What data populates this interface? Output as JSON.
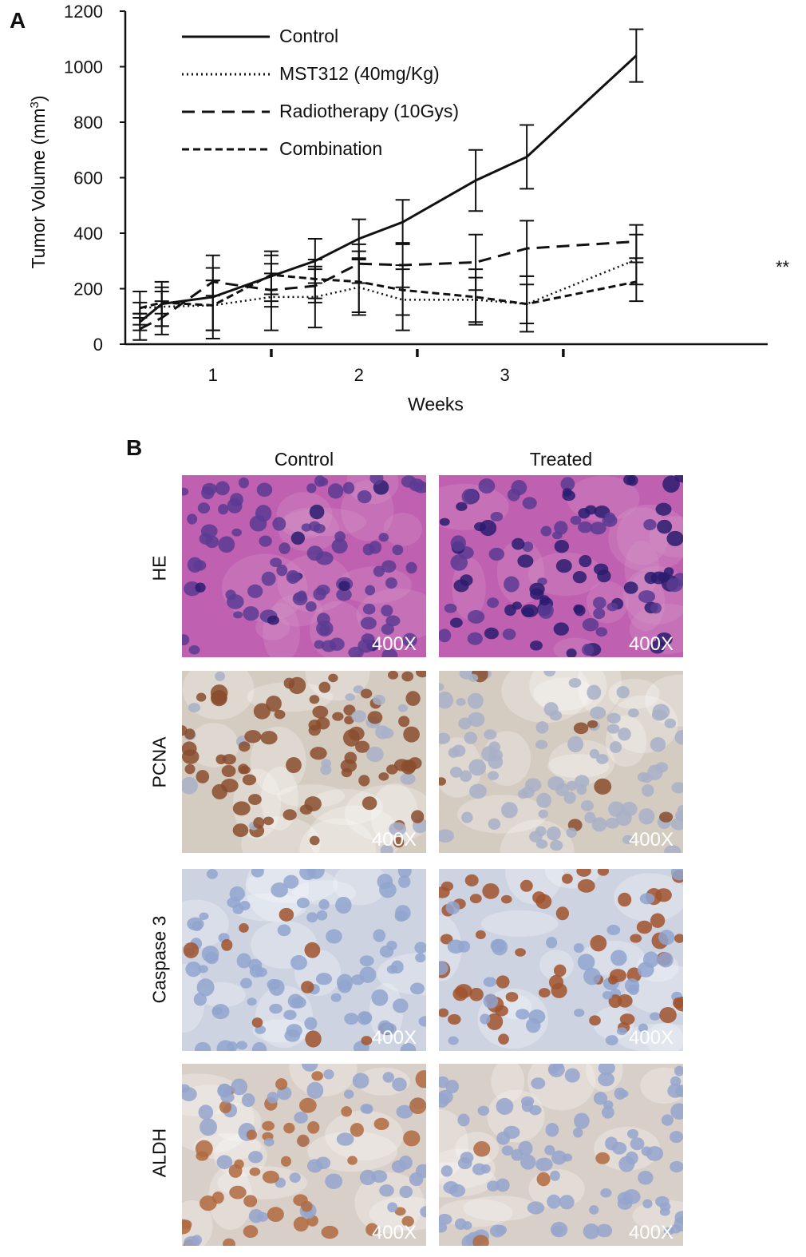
{
  "panel_a": {
    "letter": "A"
  },
  "panel_b": {
    "letter": "B",
    "columns": [
      "Control",
      "Treated"
    ],
    "rows": [
      "HE",
      "PCNA",
      "Caspase 3",
      "ALDH"
    ],
    "magnification": "400X",
    "tile_style": {
      "HE": {
        "background": "#c060b0",
        "cell": "#5a3b93",
        "dark": "#2a1c70",
        "alt": "#d8a0cc"
      },
      "PCNA": {
        "background": "#d4cbc1",
        "cell": "#a8b0c8",
        "stain": "#8a4e2e"
      },
      "Caspase 3": {
        "background": "#cdd3e0",
        "cell": "#90a4cf",
        "stain": "#a0522d"
      },
      "ALDH": {
        "background": "#d8cfc8",
        "cell": "#94a4cc",
        "stain": "#b06a40"
      }
    }
  },
  "chart_data": {
    "type": "line",
    "xlabel": "Weeks",
    "ylabel": "Tumor Volume (mm3)",
    "ylabel_parts": {
      "main": "Tumor Volume (mm",
      "sup": "3",
      "close": ")"
    },
    "ylim": [
      0,
      1200
    ],
    "yticks": [
      "0",
      "200",
      "400",
      "600",
      "800",
      "1000",
      "1200"
    ],
    "xlim": [
      0,
      4.4
    ],
    "xtick_labels": [
      {
        "label": "1",
        "x": 0.6
      },
      {
        "label": "2",
        "x": 1.6
      },
      {
        "label": "3",
        "x": 2.6
      }
    ],
    "week_boundaries": [
      1.0,
      2.0,
      3.0
    ],
    "annotation": "**",
    "legend_position": "top-left",
    "series": [
      {
        "name": "Control",
        "dash": "solid",
        "x": [
          0.1,
          0.25,
          0.6,
          1.0,
          1.3,
          1.6,
          1.9,
          2.4,
          2.75,
          3.5
        ],
        "y": [
          80,
          145,
          170,
          245,
          300,
          380,
          440,
          590,
          675,
          1040
        ],
        "err": [
          30,
          80,
          150,
          90,
          80,
          70,
          80,
          110,
          115,
          95
        ]
      },
      {
        "name": "MST312 (40mg/Kg)",
        "dash": "dotted",
        "x": [
          0.1,
          0.25,
          0.6,
          1.0,
          1.3,
          1.6,
          1.9,
          2.4,
          2.75,
          3.5
        ],
        "y": [
          130,
          135,
          140,
          170,
          170,
          205,
          160,
          160,
          145,
          305
        ],
        "err": [
          60,
          70,
          90,
          120,
          110,
          100,
          110,
          80,
          70,
          90
        ]
      },
      {
        "name": "Radiotherapy (10Gys)",
        "dash": "dashed",
        "x": [
          0.1,
          0.25,
          0.6,
          1.0,
          1.3,
          1.6,
          1.9,
          2.4,
          2.75,
          3.5
        ],
        "y": [
          55,
          95,
          225,
          195,
          210,
          290,
          285,
          295,
          345,
          370
        ],
        "err": [
          40,
          60,
          50,
          60,
          60,
          70,
          80,
          100,
          100,
          60
        ]
      },
      {
        "name": "Combination",
        "dash": "short-dashed",
        "x": [
          0.1,
          0.25,
          0.6,
          1.0,
          1.3,
          1.6,
          1.9,
          2.4,
          2.75,
          3.5
        ],
        "y": [
          130,
          150,
          140,
          250,
          235,
          225,
          195,
          170,
          145,
          225
        ],
        "err": [
          20,
          40,
          90,
          70,
          70,
          110,
          90,
          100,
          100,
          70
        ]
      }
    ]
  }
}
